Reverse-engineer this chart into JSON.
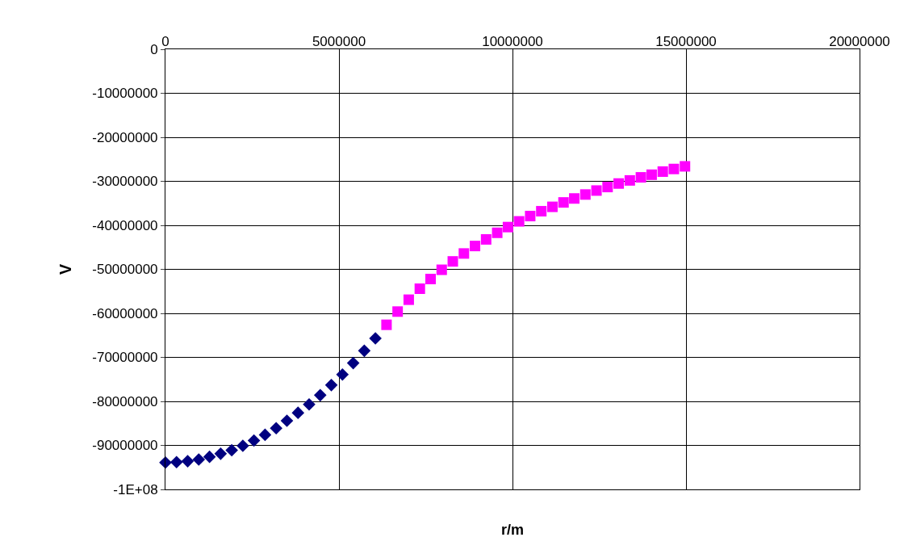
{
  "chart_data": {
    "type": "scatter",
    "xlabel": "r/m",
    "ylabel": "V",
    "xlim": [
      0,
      20000000
    ],
    "xticks": [
      0,
      5000000,
      10000000,
      15000000,
      20000000
    ],
    "ylim": [
      -100000000,
      0
    ],
    "yticks": [
      {
        "value": -100000000,
        "label": "-1E+08"
      },
      -90000000,
      -80000000,
      -70000000,
      -60000000,
      -50000000,
      -40000000,
      -30000000,
      -20000000,
      -10000000,
      0
    ],
    "grid": true,
    "series": [
      {
        "color": "#000080",
        "marker": "diamond",
        "x": [
          0,
          320000,
          640000,
          960000,
          1270000,
          1590000,
          1910000,
          2230000,
          2550000,
          2870000,
          3190000,
          3500000,
          3820000,
          4140000,
          4460000,
          4780000,
          5100000,
          5410000,
          5730000,
          6050000
        ],
        "values": [
          -93900000,
          -93800000,
          -93600000,
          -93200000,
          -92600000,
          -91900000,
          -91100000,
          -90100000,
          -88900000,
          -87600000,
          -86100000,
          -84400000,
          -82600000,
          -80700000,
          -78600000,
          -76300000,
          -73900000,
          -71300000,
          -68500000,
          -65700000
        ]
      },
      {
        "color": "#ff00ff",
        "marker": "square",
        "x": [
          6370000,
          6690000,
          7010000,
          7330000,
          7640000,
          7960000,
          8280000,
          8600000,
          8920000,
          9240000,
          9560000,
          9870000,
          10190000,
          10510000,
          10830000,
          11150000,
          11470000,
          11780000,
          12100000,
          12420000,
          12740000,
          13060000,
          13380000,
          13700000,
          14010000,
          14330000,
          14650000,
          14970000
        ],
        "values": [
          -62600000,
          -59600000,
          -56900000,
          -54400000,
          -52200000,
          -50100000,
          -48200000,
          -46400000,
          -44700000,
          -43200000,
          -41700000,
          -40400000,
          -39100000,
          -37900000,
          -36800000,
          -35800000,
          -34800000,
          -33900000,
          -33000000,
          -32100000,
          -31300000,
          -30500000,
          -29800000,
          -29100000,
          -28500000,
          -27800000,
          -27200000,
          -26600000
        ]
      }
    ]
  }
}
